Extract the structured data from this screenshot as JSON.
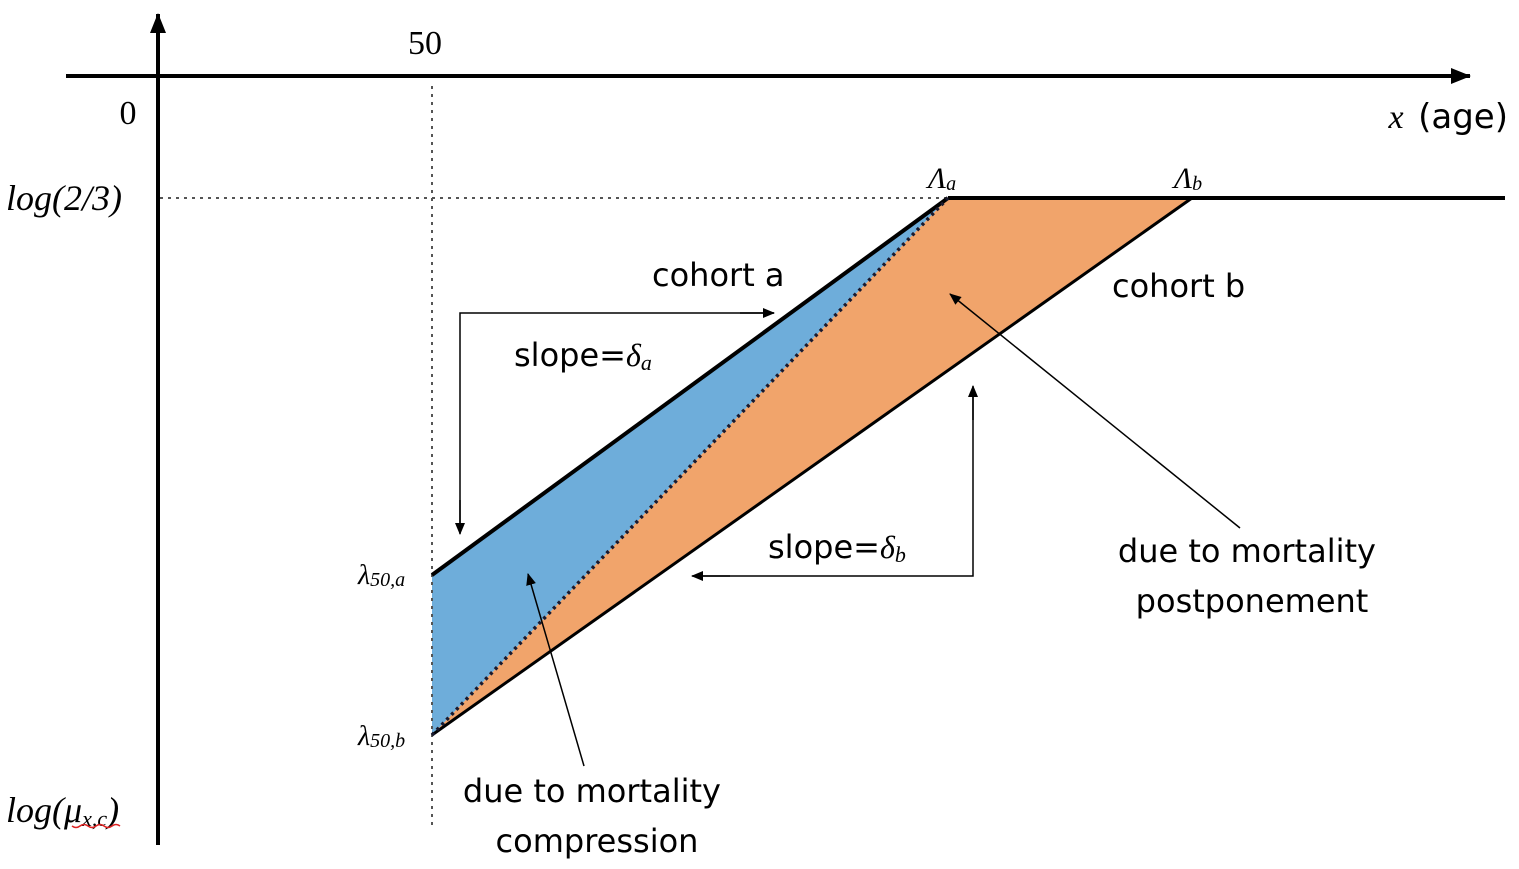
{
  "axes": {
    "x_tick_50": "50",
    "origin_label": "0",
    "x_axis_var": "x",
    "x_axis_unit": "(age)",
    "y_level_log": "log",
    "y_level_arg": "(2/3)",
    "y_axis_log": "log",
    "y_axis_open": "(",
    "y_axis_mu": "μ",
    "y_axis_sub": "x,c",
    "y_axis_close": ")"
  },
  "points": {
    "lambda_a_sym": "λ",
    "lambda_a_sub": "50,a",
    "lambda_b_sym": "λ",
    "lambda_b_sub": "50,b",
    "cap_a_sym": "Λ",
    "cap_a_sub": "a",
    "cap_b_sym": "Λ",
    "cap_b_sub": "b"
  },
  "labels": {
    "cohort_a": "cohort a",
    "cohort_b": "cohort b",
    "slope_a_text": "slope=",
    "slope_a_sym": "δ",
    "slope_a_sub": "a",
    "slope_b_text": "slope=",
    "slope_b_sym": "δ",
    "slope_b_sub": "b",
    "postponement_line1": "due to mortality",
    "postponement_line2": "postponement",
    "compression_line1": "due to mortality",
    "compression_line2": "compression"
  },
  "colors": {
    "blue_region": "#6eadda",
    "orange_region": "#f1a46b",
    "line": "#000000"
  }
}
